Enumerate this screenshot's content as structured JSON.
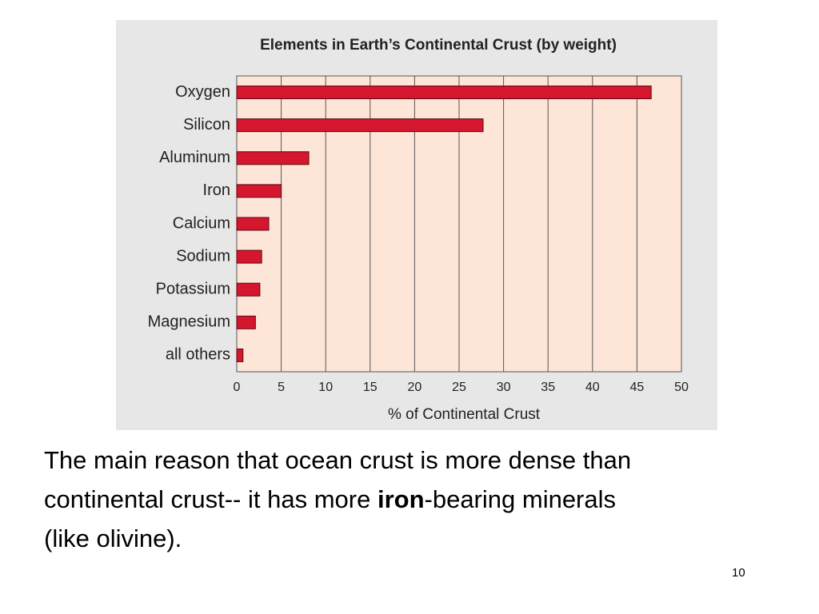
{
  "chart_data": {
    "type": "bar",
    "orientation": "horizontal",
    "title": "Elements in Earth’s Continental Crust (by weight)",
    "categories": [
      "Oxygen",
      "Silicon",
      "Aluminum",
      "Iron",
      "Calcium",
      "Sodium",
      "Potassium",
      "Magnesium",
      "all others"
    ],
    "values": [
      46.6,
      27.7,
      8.1,
      5.0,
      3.6,
      2.8,
      2.6,
      2.1,
      0.7
    ],
    "color": "#d4162e",
    "xlabel": "% of Continental Crust",
    "xlim": [
      0,
      50
    ],
    "xticks": [
      0,
      5,
      10,
      15,
      20,
      25,
      30,
      35,
      40,
      45,
      50
    ],
    "grid": true
  },
  "caption": [
    [
      "The main reason that ocean crust is more dense than"
    ],
    [
      "continental crust-- it has more ",
      "iron",
      "-bearing minerals"
    ],
    [
      "(like olivine)."
    ]
  ],
  "page_number": "10"
}
